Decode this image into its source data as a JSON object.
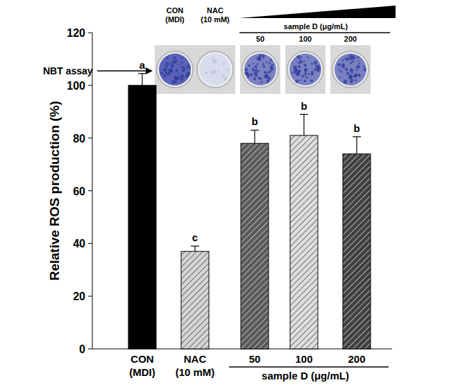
{
  "chart_data": {
    "type": "bar",
    "categories": [
      "CON (MDI)",
      "NAC (10 mM)",
      "50",
      "100",
      "200"
    ],
    "values": [
      100,
      37,
      78,
      81,
      74
    ],
    "errors": [
      4.5,
      2,
      5,
      8,
      6.5
    ],
    "letters": [
      "a",
      "c",
      "b",
      "b",
      "b"
    ],
    "colors": [
      "#000000",
      "#d4d4d4",
      "#5a5a5a",
      "#dedede",
      "#404040"
    ],
    "group_label": "sample D (μg/mL)",
    "panel_label": "NBT assay",
    "y_label": "Relative ROS production (%)",
    "ylim": [
      0,
      120
    ],
    "yticks": [
      0,
      20,
      40,
      60,
      80,
      100,
      120
    ]
  }
}
